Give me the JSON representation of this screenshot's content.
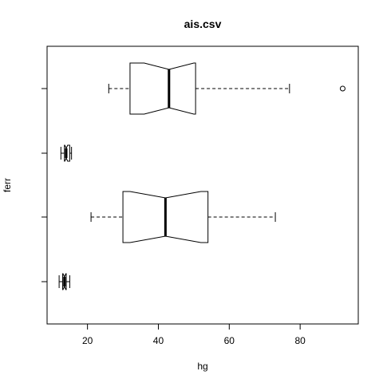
{
  "chart_data": {
    "type": "boxplot",
    "orientation": "horizontal",
    "notch": true,
    "title": "ais.csv",
    "xlabel": "hg",
    "ylabel": "ferr",
    "xlim": [
      8.6,
      96.4
    ],
    "xticks": [
      20,
      40,
      60,
      80
    ],
    "boxes": [
      {
        "min": 12.0,
        "q1": 13.0,
        "median": 13.5,
        "q3": 14.0,
        "max": 15.0,
        "notch_low": 13.1,
        "notch_high": 13.9,
        "outliers": []
      },
      {
        "min": 21.0,
        "q1": 30.0,
        "median": 42.0,
        "q3": 54.0,
        "max": 73.0,
        "notch_low": 32.0,
        "notch_high": 52.0,
        "outliers": []
      },
      {
        "min": 12.5,
        "q1": 13.5,
        "median": 14.0,
        "q3": 15.0,
        "max": 15.5,
        "notch_low": 13.6,
        "notch_high": 14.4,
        "outliers": []
      },
      {
        "min": 26.0,
        "q1": 32.0,
        "median": 43.0,
        "q3": 50.5,
        "max": 77.0,
        "notch_low": 36.0,
        "notch_high": 50.0,
        "outliers": [
          92.0
        ]
      }
    ],
    "grid": false,
    "legend": "none"
  }
}
